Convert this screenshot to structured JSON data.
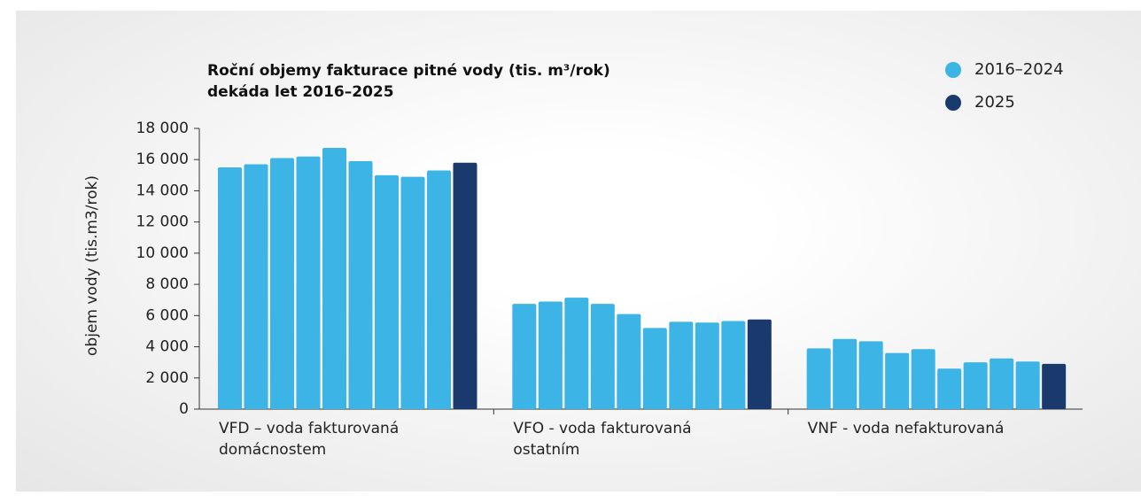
{
  "chart_data": {
    "type": "bar",
    "title": "Roční objemy fakturace pitné vody (tis. m³/rok)",
    "subtitle": "dekáda let 2016–2025",
    "y_label": "objem vody (tis.m3/rok)",
    "categories": [
      "VFD – voda fakturovaná domácnostem",
      "VFO - voda fakturovaná ostatním",
      "VNF - voda nefakturovaná"
    ],
    "series": [
      {
        "name": "2016–2024",
        "color": "#3db4e6",
        "values": [
          [
            15500,
            15700,
            16100,
            16200,
            16750,
            15900,
            15000,
            14900,
            15300
          ],
          [
            6750,
            6900,
            7150,
            6750,
            6100,
            5200,
            5600,
            5550,
            5650
          ],
          [
            3900,
            4500,
            4350,
            3600,
            3850,
            2600,
            3000,
            3250,
            3050
          ]
        ]
      },
      {
        "name": "2025",
        "color": "#1a3a6e",
        "values": [
          15800,
          5750,
          2900
        ]
      }
    ],
    "ylim": [
      0,
      18000
    ],
    "yticks": [
      0,
      {
        "value": 2000,
        "label": "2 000"
      },
      {
        "value": 4000,
        "label": "4 000"
      },
      {
        "value": 6000,
        "label": "6 000"
      },
      {
        "value": 8000,
        "label": "8 000"
      },
      {
        "value": 10000,
        "label": "10 000"
      },
      {
        "value": 12000,
        "label": "12 000"
      },
      {
        "value": 14000,
        "label": "14 000"
      },
      {
        "value": 16000,
        "label": "16 000"
      },
      {
        "value": 18000,
        "label": "18 000"
      }
    ],
    "legend": "top-right"
  }
}
